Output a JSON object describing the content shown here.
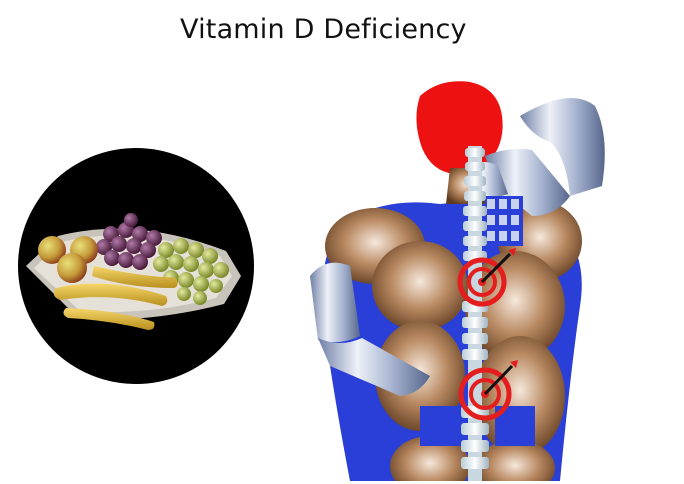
{
  "title": "Vitamin D Deficiency",
  "colors": {
    "background": "#ffffff",
    "title_text": "#111111",
    "head_highlight": "#ee1111",
    "muscle_blue": "#2a3fd8",
    "skin_brown": "#8a5a38",
    "target_red": "#e41e1e",
    "fruit_plate_background": "#000000"
  },
  "illustrations": [
    {
      "name": "fruit-plate-photo",
      "depicts": "fruit-plate"
    },
    {
      "name": "back-pain-figure",
      "depicts": "human-back-with-spine-pain-targets"
    }
  ]
}
